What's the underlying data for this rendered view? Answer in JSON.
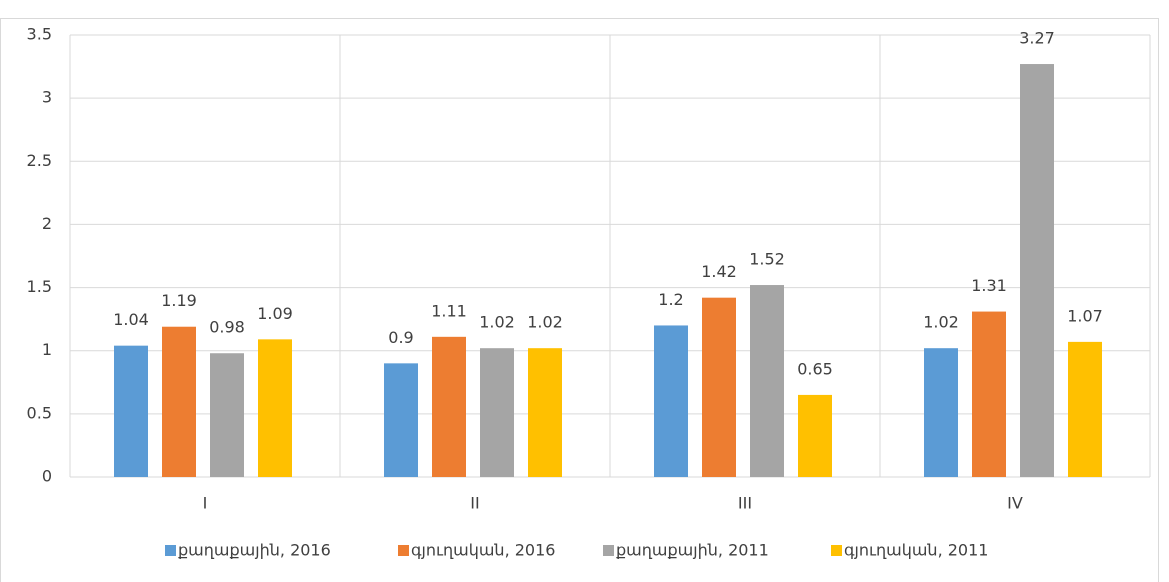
{
  "chart_data": {
    "type": "bar",
    "categories": [
      "I",
      "II",
      "III",
      "IV"
    ],
    "series": [
      {
        "name": "քաղաքային, 2016",
        "color": "#5b9bd5",
        "values": [
          1.04,
          0.9,
          1.2,
          1.02
        ]
      },
      {
        "name": "գյուղական, 2016",
        "color": "#ed7d31",
        "values": [
          1.19,
          1.11,
          1.42,
          1.31
        ]
      },
      {
        "name": "քաղաքային, 2011",
        "color": "#a5a5a5",
        "values": [
          0.98,
          1.02,
          1.52,
          3.27
        ]
      },
      {
        "name": "գյուղական, 2011",
        "color": "#ffc000",
        "values": [
          1.09,
          1.02,
          0.65,
          1.07
        ]
      }
    ],
    "ylim": [
      0,
      3.5
    ],
    "yticks": [
      0,
      0.5,
      1,
      1.5,
      2,
      2.5,
      3,
      3.5
    ],
    "grid": true,
    "legend": "bottom"
  }
}
